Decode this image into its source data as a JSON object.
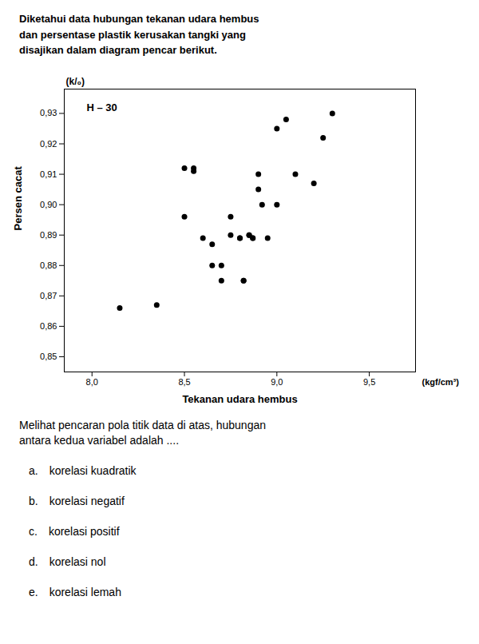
{
  "chart_data": {
    "type": "scatter",
    "title": "Diketahui data hubungan tekanan udara hembus\ndan persentase plastik kerusakan tangki yang\ndisajikan dalam diagram pencar berikut.",
    "x": [
      8.15,
      8.35,
      8.5,
      8.5,
      8.55,
      8.55,
      8.6,
      8.65,
      8.65,
      8.7,
      8.7,
      8.75,
      8.75,
      8.8,
      8.8,
      8.82,
      8.82,
      8.85,
      8.85,
      8.87,
      8.87,
      8.9,
      8.9,
      8.92,
      8.95,
      9.0,
      9.0,
      9.05,
      9.1,
      9.2,
      9.25,
      9.3
    ],
    "values": [
      0.866,
      0.867,
      0.896,
      0.912,
      0.911,
      0.912,
      0.889,
      0.88,
      0.887,
      0.875,
      0.88,
      0.896,
      0.89,
      0.889,
      0.889,
      0.875,
      0.875,
      0.89,
      0.89,
      0.889,
      0.889,
      0.91,
      0.905,
      0.9,
      0.889,
      0.9,
      0.925,
      0.928,
      0.91,
      0.907,
      0.922,
      0.93
    ],
    "xlabel": "Tekanan udara hembus",
    "ylabel": "Persen cacat",
    "x_unit": "(kgf/cm³)",
    "y_unit": "(k/₀)",
    "annotation": "H – 30",
    "xlim": [
      7.85,
      9.75
    ],
    "ylim": [
      0.845,
      0.938
    ],
    "xticks": [
      {
        "value": 8.0,
        "label": "8,0"
      },
      {
        "value": 8.5,
        "label": "8,5"
      },
      {
        "value": 9.0,
        "label": "9,0"
      },
      {
        "value": 9.5,
        "label": "9,5"
      }
    ],
    "yticks": [
      {
        "value": 0.85,
        "label": "0,85"
      },
      {
        "value": 0.86,
        "label": "0,86"
      },
      {
        "value": 0.87,
        "label": "0,87"
      },
      {
        "value": 0.88,
        "label": "0,88"
      },
      {
        "value": 0.89,
        "label": "0,89"
      },
      {
        "value": 0.9,
        "label": "0,90"
      },
      {
        "value": 0.91,
        "label": "0,91"
      },
      {
        "value": 0.92,
        "label": "0,92"
      },
      {
        "value": 0.93,
        "label": "0,93"
      }
    ],
    "question": "Melihat pencaran pola titik data di atas, hubungan\nantara kedua variabel adalah ....",
    "options": [
      "a. korelasi kuadratik",
      "b. korelasi negatif",
      "c. korelasi positif",
      "d. korelasi nol",
      "e. korelasi lemah"
    ],
    "color": "#000000",
    "grid": false
  }
}
